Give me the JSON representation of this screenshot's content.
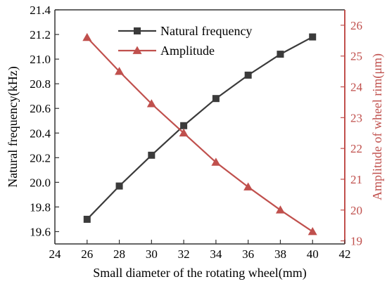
{
  "chart_data": {
    "type": "line",
    "xlabel": "Small diameter of the rotating wheel(mm)",
    "ylabel_left": "Natural frequency(kHz)",
    "ylabel_right": "Amplitude of  wheel rim(μm)",
    "xlim": [
      24,
      42
    ],
    "xticks": [
      24,
      26,
      28,
      30,
      32,
      34,
      36,
      38,
      40,
      42
    ],
    "ylim_left": [
      19.5,
      21.4
    ],
    "yticks_left": [
      19.6,
      19.8,
      20.0,
      20.2,
      20.4,
      20.6,
      20.8,
      21.0,
      21.2,
      21.4
    ],
    "ylim_right": [
      18.9,
      26.5
    ],
    "yticks_right": [
      19,
      20,
      21,
      22,
      23,
      24,
      25,
      26
    ],
    "grid": false,
    "legend_position": "top-left",
    "x": [
      26,
      28,
      30,
      32,
      34,
      36,
      38,
      40
    ],
    "series": [
      {
        "name": "Natural frequency",
        "axis": "left",
        "marker": "square",
        "color": "#3b3b3b",
        "values": [
          19.7,
          19.97,
          20.22,
          20.46,
          20.68,
          20.87,
          21.04,
          21.18
        ]
      },
      {
        "name": "Amplitude",
        "axis": "right",
        "marker": "triangle",
        "color": "#c0504d",
        "values": [
          25.6,
          24.5,
          23.45,
          22.5,
          21.55,
          20.75,
          20.0,
          19.3
        ]
      }
    ]
  }
}
